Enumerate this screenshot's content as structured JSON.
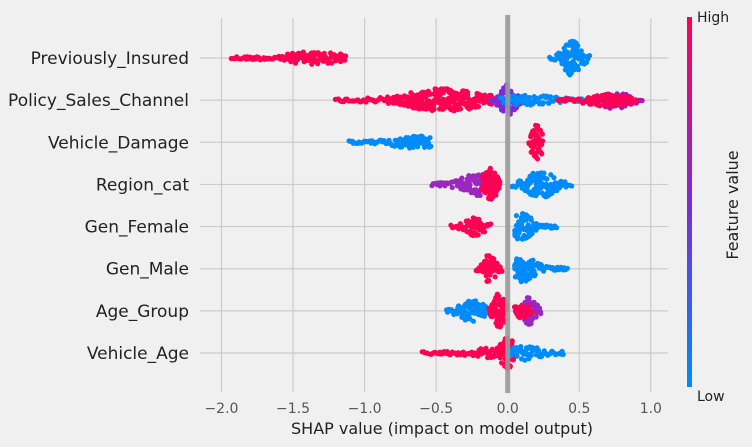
{
  "chart_data": {
    "type": "scatter",
    "title": "",
    "xlabel": "SHAP value (impact on model output)",
    "xlim": [
      -2.15,
      1.12
    ],
    "xticks": [
      -2.0,
      -1.5,
      -1.0,
      -0.5,
      0.0,
      0.5,
      1.0
    ],
    "xtick_labels": [
      "−2.0",
      "−1.5",
      "−1.0",
      "−0.5",
      "0.0",
      "0.5",
      "1.0"
    ],
    "grid": true,
    "features": [
      {
        "name": "Previously_Insured",
        "clusters": [
          {
            "min": -1.93,
            "max": -1.13,
            "center": -1.35,
            "spread": 5,
            "color": "#ff0052"
          },
          {
            "min": 0.29,
            "max": 0.57,
            "center": 0.45,
            "spread": 16,
            "color": "#008bfb"
          }
        ]
      },
      {
        "name": "Policy_Sales_Channel",
        "clusters": [
          {
            "min": -1.2,
            "max": -0.1,
            "center": -0.45,
            "spread": 10,
            "color": "#ff0052"
          },
          {
            "min": -0.12,
            "max": 0.12,
            "center": 0.0,
            "spread": 14,
            "color": "#7e2bd6"
          },
          {
            "min": -0.05,
            "max": 0.6,
            "center": 0.15,
            "spread": 4,
            "color": "#008bfb"
          },
          {
            "min": 0.55,
            "max": 0.95,
            "center": 0.75,
            "spread": 7,
            "color": "#b517a8"
          },
          {
            "min": 0.35,
            "max": 0.9,
            "center": 0.7,
            "spread": 5,
            "color": "#ff0052"
          }
        ]
      },
      {
        "name": "Vehicle_Damage",
        "clusters": [
          {
            "min": -1.11,
            "max": -0.53,
            "center": -0.65,
            "spread": 5,
            "color": "#008bfb"
          },
          {
            "min": 0.15,
            "max": 0.24,
            "center": 0.2,
            "spread": 16,
            "color": "#ff0052"
          }
        ]
      },
      {
        "name": "Region_cat",
        "clusters": [
          {
            "min": -0.53,
            "max": -0.05,
            "center": -0.2,
            "spread": 10,
            "color": "#9c27c0"
          },
          {
            "min": -0.18,
            "max": -0.05,
            "center": -0.12,
            "spread": 15,
            "color": "#ff0052"
          },
          {
            "min": 0.03,
            "max": 0.45,
            "center": 0.23,
            "spread": 12,
            "color": "#008bfb"
          }
        ]
      },
      {
        "name": "Gen_Female",
        "clusters": [
          {
            "min": -0.4,
            "max": -0.12,
            "center": -0.23,
            "spread": 8,
            "color": "#ff0052"
          },
          {
            "min": 0.05,
            "max": 0.35,
            "center": 0.1,
            "spread": 12,
            "color": "#008bfb"
          }
        ]
      },
      {
        "name": "Gen_Male",
        "clusters": [
          {
            "min": -0.22,
            "max": -0.03,
            "center": -0.13,
            "spread": 12,
            "color": "#ff0052"
          },
          {
            "min": 0.05,
            "max": 0.42,
            "center": 0.1,
            "spread": 12,
            "color": "#008bfb"
          }
        ]
      },
      {
        "name": "Age_Group",
        "clusters": [
          {
            "min": -0.43,
            "max": -0.08,
            "center": -0.25,
            "spread": 10,
            "color": "#008bfb"
          },
          {
            "min": -0.13,
            "max": 0.0,
            "center": -0.06,
            "spread": 16,
            "color": "#ff0052"
          },
          {
            "min": 0.05,
            "max": 0.23,
            "center": 0.15,
            "spread": 12,
            "color": "#9c27c0"
          },
          {
            "min": 0.05,
            "max": 0.18,
            "center": 0.1,
            "spread": 6,
            "color": "#ff0052"
          }
        ]
      },
      {
        "name": "Vehicle_Age",
        "clusters": [
          {
            "min": -0.6,
            "max": -0.05,
            "center": -0.1,
            "spread": 4,
            "color": "#ff0052"
          },
          {
            "min": -0.05,
            "max": 0.05,
            "center": 0.0,
            "spread": 15,
            "color": "#ff0052"
          },
          {
            "min": 0.0,
            "max": 0.4,
            "center": 0.12,
            "spread": 6,
            "color": "#008bfb"
          }
        ]
      }
    ],
    "colorbar": {
      "label": "Feature value",
      "high_label": "High",
      "low_label": "Low",
      "high_color": "#ff0052",
      "mid_color": "#7e2bd6",
      "low_color": "#008bfb"
    },
    "zero_line_color": "#999999",
    "grid_color": "#cbcbcb"
  }
}
